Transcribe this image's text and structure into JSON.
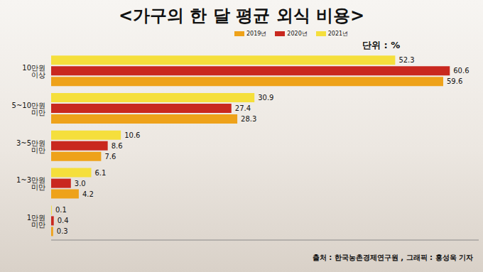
{
  "chart_data": {
    "type": "bar",
    "orientation": "horizontal",
    "title": "<가구의 한 달 평균 외식 비용>",
    "annotations": [
      "단위 : %",
      "출처 : 한국농촌경제연구원 , 그래픽 : 홍성욱 기자"
    ],
    "categories": [
      "10만원 이상",
      "5~10만원 미만",
      "3~5만원 미만",
      "1~3만원 미만",
      "1만원 미만"
    ],
    "series": [
      {
        "name": "2019년",
        "color": "#eea21a",
        "values": [
          59.6,
          28.3,
          7.6,
          4.2,
          0.3
        ],
        "value_labels": [
          "59.6",
          "28.3",
          "7.6",
          "4.2",
          "0.3"
        ]
      },
      {
        "name": "2020년",
        "color": "#c9281f",
        "values": [
          60.6,
          27.4,
          8.6,
          3.0,
          0.4
        ],
        "value_labels": [
          "60.6",
          "27.4",
          "8.6",
          "3.0",
          "0.4"
        ]
      },
      {
        "name": "2021년",
        "color": "#f5df3c",
        "values": [
          52.3,
          30.9,
          10.6,
          6.1,
          0.1
        ],
        "value_labels": [
          "52.3",
          "30.9",
          "10.6",
          "6.1",
          "0.1"
        ]
      }
    ],
    "xlim": [
      0,
      65
    ],
    "data_labels": true,
    "tick_labels": "y",
    "legend": "top",
    "grid": false
  }
}
